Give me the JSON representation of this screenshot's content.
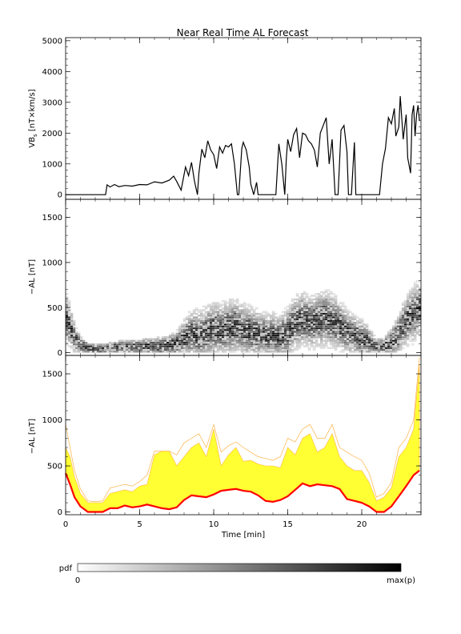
{
  "title": "Near Real Time AL Forecast",
  "colors": {
    "median": "#ff0000",
    "fill": "#ffff33",
    "envelope": "#ffaa33"
  },
  "colorbar": {
    "label": "pdf",
    "min_label": "0",
    "max_label": "max(p)"
  },
  "chart_data": [
    {
      "type": "line",
      "ylabel": "VB",
      "ylabel_sub": "s",
      "ylabel_unit": "[nT×km/s]",
      "xlim": [
        0,
        24
      ],
      "ylim": [
        -150,
        5100
      ],
      "yticks": [
        0,
        1000,
        2000,
        3000,
        4000,
        5000
      ],
      "xticks": [
        0,
        5,
        10,
        15,
        20
      ],
      "x": [
        0,
        2.7,
        2.8,
        3.0,
        3.3,
        3.6,
        4.0,
        4.5,
        5.0,
        5.5,
        6.0,
        6.5,
        7.0,
        7.3,
        7.5,
        7.8,
        8.1,
        8.3,
        8.5,
        8.7,
        8.9,
        9.0,
        9.2,
        9.4,
        9.6,
        9.8,
        10.0,
        10.2,
        10.4,
        10.6,
        10.8,
        11.0,
        11.2,
        11.4,
        11.6,
        11.7,
        11.9,
        12.0,
        12.2,
        12.4,
        12.5,
        12.7,
        12.9,
        13.0,
        13.2,
        14.2,
        14.4,
        14.6,
        14.8,
        14.9,
        15.0,
        15.2,
        15.4,
        15.6,
        15.8,
        16.0,
        16.2,
        16.4,
        16.6,
        16.8,
        17.0,
        17.2,
        17.4,
        17.6,
        17.8,
        18.0,
        18.2,
        18.4,
        18.6,
        18.8,
        19.0,
        19.1,
        19.3,
        19.5,
        19.6,
        21.0,
        21.2,
        21.4,
        21.6,
        21.8,
        22.0,
        22.2,
        22.3,
        22.5,
        22.6,
        22.8,
        22.9,
        23.0,
        23.1,
        23.3,
        23.4,
        23.5,
        23.6,
        23.7,
        23.8,
        23.9
      ],
      "values": [
        0,
        0,
        320,
        250,
        330,
        260,
        300,
        280,
        330,
        320,
        420,
        380,
        470,
        600,
        430,
        150,
        900,
        620,
        1050,
        450,
        0,
        700,
        1480,
        1200,
        1750,
        1450,
        1300,
        850,
        1550,
        1350,
        1600,
        1550,
        1650,
        1000,
        0,
        0,
        1500,
        1700,
        1450,
        900,
        350,
        0,
        400,
        0,
        0,
        0,
        1650,
        1000,
        0,
        1150,
        1800,
        1400,
        1950,
        2150,
        1200,
        2000,
        1950,
        1750,
        1650,
        1450,
        900,
        2000,
        2250,
        2500,
        1000,
        1800,
        0,
        0,
        2100,
        2250,
        1400,
        0,
        0,
        1700,
        0,
        0,
        0,
        1000,
        1500,
        2500,
        2300,
        2800,
        1900,
        2200,
        3200,
        1800,
        2200,
        2600,
        1200,
        700,
        2600,
        2900,
        1900,
        2600,
        2900,
        2400
      ]
    },
    {
      "type": "heatmap",
      "ylabel": "−AL [nT]",
      "xlim": [
        0,
        24
      ],
      "ylim": [
        -30,
        1700
      ],
      "yticks": [
        0,
        500,
        1000,
        1500
      ],
      "xticks": [
        0,
        5,
        10,
        15,
        20
      ],
      "x": [
        0.0,
        0.3,
        0.6,
        1.0,
        1.5,
        2.0,
        2.5,
        3.0,
        3.5,
        4.0,
        4.5,
        5.0,
        5.5,
        6.0,
        6.5,
        7.0,
        7.5,
        8.0,
        8.5,
        9.0,
        9.5,
        10.0,
        10.5,
        11.0,
        11.5,
        12.0,
        12.5,
        13.0,
        13.5,
        14.0,
        14.5,
        15.0,
        15.5,
        16.0,
        16.5,
        17.0,
        17.5,
        18.0,
        18.5,
        19.0,
        19.5,
        20.0,
        20.5,
        21.0,
        21.5,
        22.0,
        22.5,
        23.0,
        23.5,
        23.9
      ],
      "center": [
        400,
        280,
        150,
        70,
        40,
        30,
        30,
        40,
        50,
        50,
        50,
        55,
        60,
        60,
        60,
        70,
        90,
        150,
        200,
        180,
        210,
        250,
        240,
        260,
        280,
        240,
        220,
        200,
        180,
        190,
        160,
        220,
        320,
        360,
        330,
        350,
        380,
        340,
        300,
        220,
        180,
        150,
        110,
        50,
        60,
        100,
        200,
        350,
        420,
        480
      ],
      "spread": [
        300,
        250,
        180,
        100,
        60,
        50,
        50,
        60,
        70,
        70,
        80,
        80,
        90,
        100,
        110,
        120,
        150,
        220,
        280,
        300,
        320,
        330,
        320,
        330,
        330,
        320,
        300,
        280,
        260,
        270,
        250,
        300,
        320,
        330,
        320,
        330,
        340,
        330,
        300,
        260,
        240,
        220,
        180,
        90,
        100,
        160,
        250,
        300,
        330,
        340
      ]
    },
    {
      "type": "area",
      "ylabel": "−AL [nT]",
      "xlabel": "Time [min]",
      "xlim": [
        0,
        24
      ],
      "ylim": [
        -30,
        1700
      ],
      "yticks": [
        0,
        500,
        1000,
        1500
      ],
      "xticks": [
        0,
        5,
        10,
        15,
        20
      ],
      "xticklabels": [
        "0",
        "5",
        "10",
        "15",
        "20"
      ],
      "x": [
        0.0,
        0.3,
        0.6,
        1.0,
        1.5,
        2.0,
        2.5,
        3.0,
        3.5,
        4.0,
        4.5,
        5.0,
        5.5,
        6.0,
        6.5,
        7.0,
        7.5,
        8.0,
        8.5,
        9.0,
        9.5,
        10.0,
        10.5,
        11.0,
        11.5,
        12.0,
        12.5,
        13.0,
        13.5,
        14.0,
        14.5,
        15.0,
        15.5,
        16.0,
        16.5,
        17.0,
        17.5,
        18.0,
        18.5,
        19.0,
        19.5,
        20.0,
        20.5,
        21.0,
        21.5,
        22.0,
        22.5,
        23.0,
        23.5,
        23.9
      ],
      "median": [
        420,
        300,
        160,
        60,
        0,
        0,
        0,
        40,
        40,
        70,
        50,
        60,
        80,
        60,
        40,
        30,
        50,
        130,
        180,
        170,
        160,
        190,
        230,
        240,
        250,
        230,
        220,
        180,
        120,
        110,
        130,
        170,
        240,
        310,
        280,
        300,
        290,
        280,
        250,
        140,
        120,
        100,
        60,
        0,
        0,
        60,
        170,
        280,
        400,
        450
      ],
      "upper": [
        700,
        600,
        380,
        200,
        100,
        100,
        100,
        200,
        220,
        240,
        220,
        280,
        300,
        620,
        660,
        660,
        500,
        600,
        700,
        750,
        600,
        900,
        500,
        620,
        700,
        550,
        560,
        520,
        500,
        500,
        480,
        700,
        620,
        800,
        850,
        650,
        700,
        850,
        600,
        500,
        450,
        450,
        320,
        120,
        160,
        260,
        600,
        700,
        900,
        1600
      ],
      "envelope": [
        950,
        700,
        450,
        250,
        120,
        110,
        120,
        260,
        280,
        300,
        280,
        330,
        400,
        660,
        660,
        660,
        620,
        750,
        800,
        850,
        700,
        950,
        650,
        720,
        760,
        700,
        650,
        600,
        580,
        560,
        600,
        800,
        760,
        900,
        950,
        800,
        800,
        950,
        700,
        650,
        600,
        560,
        420,
        160,
        200,
        320,
        700,
        800,
        1000,
        1680
      ]
    }
  ]
}
